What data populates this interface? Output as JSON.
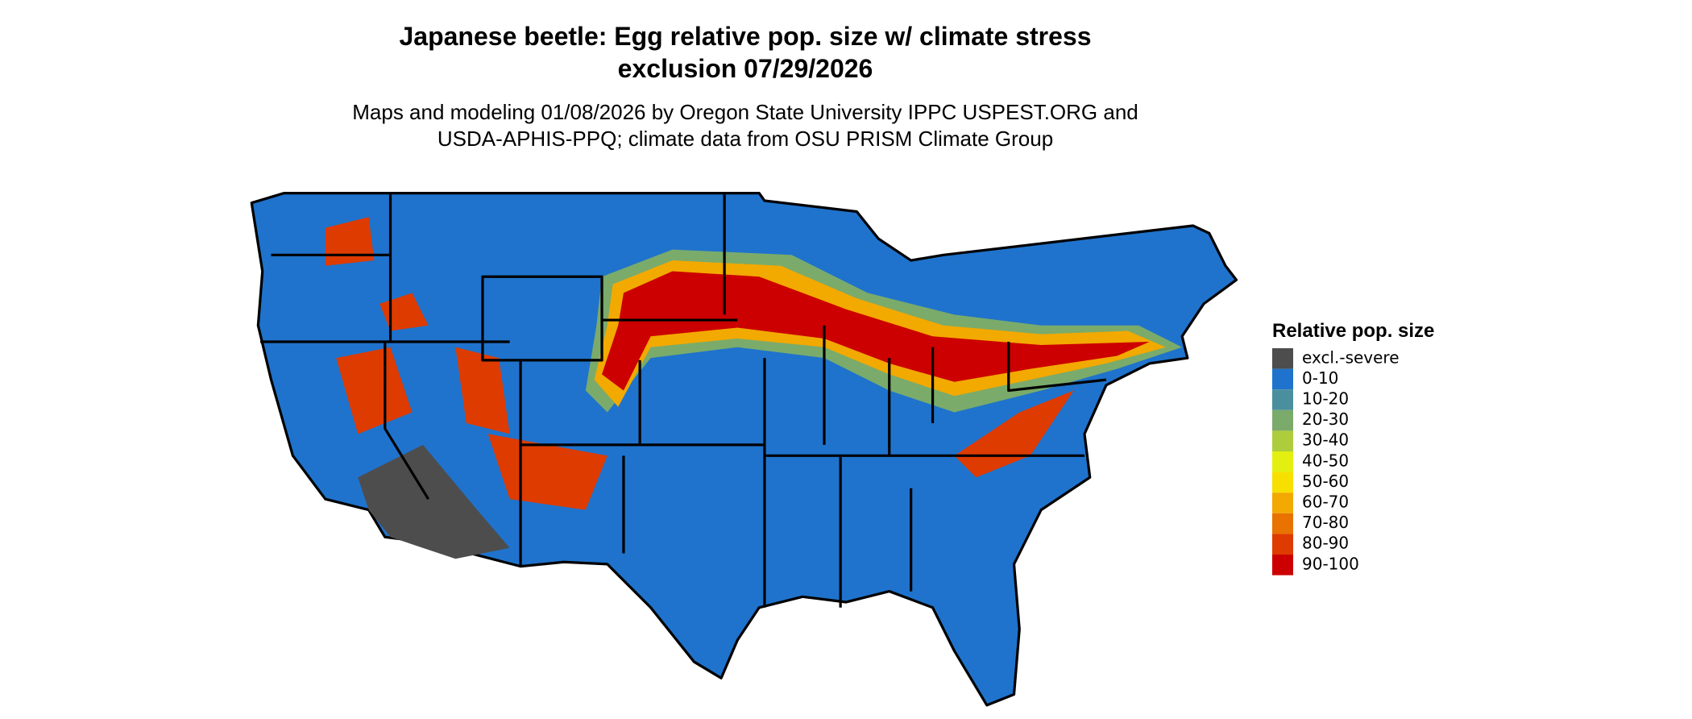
{
  "title": [
    "Japanese beetle: Egg relative pop. size w/ climate stress",
    "exclusion 07/29/2026"
  ],
  "subtitle": [
    "Maps and modeling 01/08/2026 by Oregon State University IPPC USPEST.ORG and",
    "USDA-APHIS-PPQ; climate data from OSU PRISM Climate Group"
  ],
  "legend": {
    "title": "Relative pop. size",
    "items": [
      {
        "label": "excl.-severe",
        "color": "#4d4d4d"
      },
      {
        "label": "0-10",
        "color": "#1f73cc"
      },
      {
        "label": "10-20",
        "color": "#4a8f9e"
      },
      {
        "label": "20-30",
        "color": "#7aab6b"
      },
      {
        "label": "30-40",
        "color": "#aecc3c"
      },
      {
        "label": "40-50",
        "color": "#e2ef10"
      },
      {
        "label": "50-60",
        "color": "#f7e000"
      },
      {
        "label": "60-70",
        "color": "#f2a900"
      },
      {
        "label": "70-80",
        "color": "#e87300"
      },
      {
        "label": "80-90",
        "color": "#de3b00"
      },
      {
        "label": "90-100",
        "color": "#cc0000"
      }
    ]
  }
}
